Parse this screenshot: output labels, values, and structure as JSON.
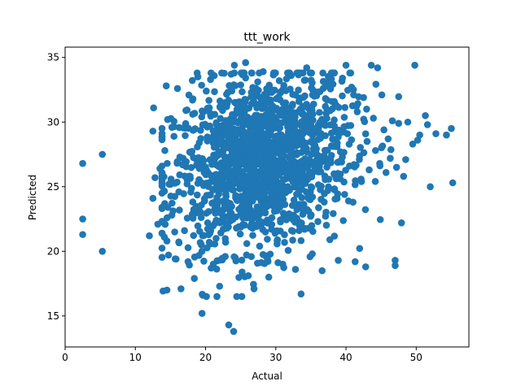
{
  "chart_data": {
    "type": "scatter",
    "title": "ttt_work",
    "xlabel": "Actual",
    "ylabel": "Predicted",
    "xlim": [
      0,
      57.5
    ],
    "ylim": [
      12.6,
      35.8
    ],
    "xticks": [
      0,
      10,
      20,
      30,
      40,
      50
    ],
    "yticks": [
      15,
      20,
      25,
      30,
      35
    ],
    "grid": false,
    "marker_color": "#1f77b4",
    "series": [
      {
        "cluster_center": [
          28.0,
          27.0
        ],
        "approx_point_count": 1500,
        "points": [
          [
            2.5,
            26.8
          ],
          [
            2.5,
            22.5
          ],
          [
            2.5,
            21.3
          ],
          [
            5.3,
            27.5
          ],
          [
            5.3,
            20.0
          ],
          [
            12.0,
            21.2
          ],
          [
            12.5,
            24.1
          ],
          [
            12.5,
            29.3
          ],
          [
            12.6,
            31.1
          ],
          [
            12.8,
            25.7
          ],
          [
            13.2,
            22.1
          ],
          [
            13.5,
            26.4
          ],
          [
            13.8,
            23.4
          ],
          [
            14.2,
            27.8
          ],
          [
            14.4,
            32.8
          ],
          [
            14.5,
            17.0
          ],
          [
            14.5,
            20.8
          ],
          [
            14.6,
            30.2
          ],
          [
            14.8,
            25.2
          ],
          [
            15.2,
            22.8
          ],
          [
            15.5,
            28.9
          ],
          [
            15.8,
            19.4
          ],
          [
            16.0,
            32.6
          ],
          [
            16.2,
            24.6
          ],
          [
            16.5,
            17.1
          ],
          [
            16.8,
            27.2
          ],
          [
            17.0,
            21.6
          ],
          [
            17.2,
            30.9
          ],
          [
            17.5,
            19.2
          ],
          [
            17.8,
            25.8
          ],
          [
            18.2,
            31.8
          ],
          [
            18.4,
            17.9
          ],
          [
            18.6,
            23.3
          ],
          [
            18.9,
            33.5
          ],
          [
            19.1,
            28.4
          ],
          [
            19.4,
            20.5
          ],
          [
            19.5,
            15.2
          ],
          [
            19.6,
            16.6
          ],
          [
            19.8,
            26.1
          ],
          [
            20.1,
            32.4
          ],
          [
            20.3,
            22.2
          ],
          [
            20.6,
            29.7
          ],
          [
            20.8,
            18.7
          ],
          [
            21.0,
            24.8
          ],
          [
            21.3,
            30.6
          ],
          [
            21.5,
            21.0
          ],
          [
            21.8,
            27.6
          ],
          [
            22.0,
            17.3
          ],
          [
            22.3,
            33.8
          ],
          [
            22.5,
            25.3
          ],
          [
            22.8,
            19.6
          ],
          [
            23.0,
            31.2
          ],
          [
            23.3,
            14.3
          ],
          [
            23.5,
            23.7
          ],
          [
            23.8,
            28.8
          ],
          [
            24.0,
            13.8
          ],
          [
            24.1,
            34.4
          ],
          [
            24.4,
            21.8
          ],
          [
            24.7,
            26.9
          ],
          [
            25.0,
            30.1
          ],
          [
            25.2,
            18.4
          ],
          [
            25.5,
            24.2
          ],
          [
            25.7,
            34.6
          ],
          [
            26.0,
            29.0
          ],
          [
            26.3,
            22.6
          ],
          [
            26.6,
            27.3
          ],
          [
            26.9,
            17.1
          ],
          [
            27.1,
            32.2
          ],
          [
            27.4,
            25.0
          ],
          [
            27.7,
            20.4
          ],
          [
            28.0,
            29.6
          ],
          [
            28.2,
            33.9
          ],
          [
            28.5,
            23.0
          ],
          [
            28.8,
            27.9
          ],
          [
            29.0,
            18.0
          ],
          [
            29.3,
            31.4
          ],
          [
            29.6,
            25.6
          ],
          [
            29.9,
            21.4
          ],
          [
            30.2,
            28.2
          ],
          [
            30.5,
            33.2
          ],
          [
            30.8,
            24.5
          ],
          [
            31.0,
            19.0
          ],
          [
            31.3,
            30.4
          ],
          [
            31.6,
            26.5
          ],
          [
            31.9,
            22.9
          ],
          [
            32.2,
            33.6
          ],
          [
            32.5,
            28.6
          ],
          [
            32.8,
            18.6
          ],
          [
            33.0,
            25.1
          ],
          [
            33.3,
            31.6
          ],
          [
            33.6,
            16.7
          ],
          [
            33.8,
            27.0
          ],
          [
            34.1,
            21.7
          ],
          [
            34.4,
            34.2
          ],
          [
            34.6,
            29.3
          ],
          [
            34.9,
            24.0
          ],
          [
            35.2,
            19.8
          ],
          [
            35.5,
            32.0
          ],
          [
            35.7,
            26.2
          ],
          [
            36.0,
            22.3
          ],
          [
            36.3,
            30.0
          ],
          [
            36.6,
            18.5
          ],
          [
            36.9,
            27.4
          ],
          [
            37.1,
            33.0
          ],
          [
            37.4,
            24.7
          ],
          [
            37.7,
            20.9
          ],
          [
            38.0,
            29.8
          ],
          [
            38.3,
            26.0
          ],
          [
            38.6,
            31.3
          ],
          [
            38.9,
            19.3
          ],
          [
            39.2,
            27.7
          ],
          [
            39.5,
            33.4
          ],
          [
            39.8,
            24.4
          ],
          [
            40.0,
            34.4
          ],
          [
            40.2,
            29.1
          ],
          [
            40.5,
            26.6
          ],
          [
            40.8,
            32.7
          ],
          [
            41.0,
            23.8
          ],
          [
            41.3,
            19.2
          ],
          [
            41.6,
            30.8
          ],
          [
            41.9,
            27.1
          ],
          [
            42.2,
            25.4
          ],
          [
            42.5,
            31.9
          ],
          [
            42.8,
            18.8
          ],
          [
            43.0,
            28.5
          ],
          [
            43.3,
            26.3
          ],
          [
            43.6,
            34.4
          ],
          [
            43.9,
            30.3
          ],
          [
            44.2,
            27.8
          ],
          [
            44.5,
            34.2
          ],
          [
            44.8,
            26.8
          ],
          [
            45.1,
            32.1
          ],
          [
            45.4,
            29.4
          ],
          [
            45.7,
            26.1
          ],
          [
            46.0,
            28.7
          ],
          [
            46.3,
            27.2
          ],
          [
            46.6,
            30.1
          ],
          [
            47.0,
            19.3
          ],
          [
            47.0,
            18.9
          ],
          [
            47.2,
            26.5
          ],
          [
            47.5,
            29.9
          ],
          [
            47.9,
            22.2
          ],
          [
            48.2,
            25.8
          ],
          [
            48.5,
            27.1
          ],
          [
            48.8,
            30.0
          ],
          [
            49.5,
            28.3
          ],
          [
            49.8,
            34.4
          ],
          [
            50.2,
            28.6
          ],
          [
            50.5,
            29.0
          ],
          [
            51.3,
            30.5
          ],
          [
            51.6,
            29.8
          ],
          [
            52.0,
            25.0
          ],
          [
            52.8,
            29.1
          ],
          [
            54.3,
            29.0
          ],
          [
            55.0,
            29.5
          ],
          [
            55.2,
            25.3
          ]
        ]
      }
    ]
  }
}
